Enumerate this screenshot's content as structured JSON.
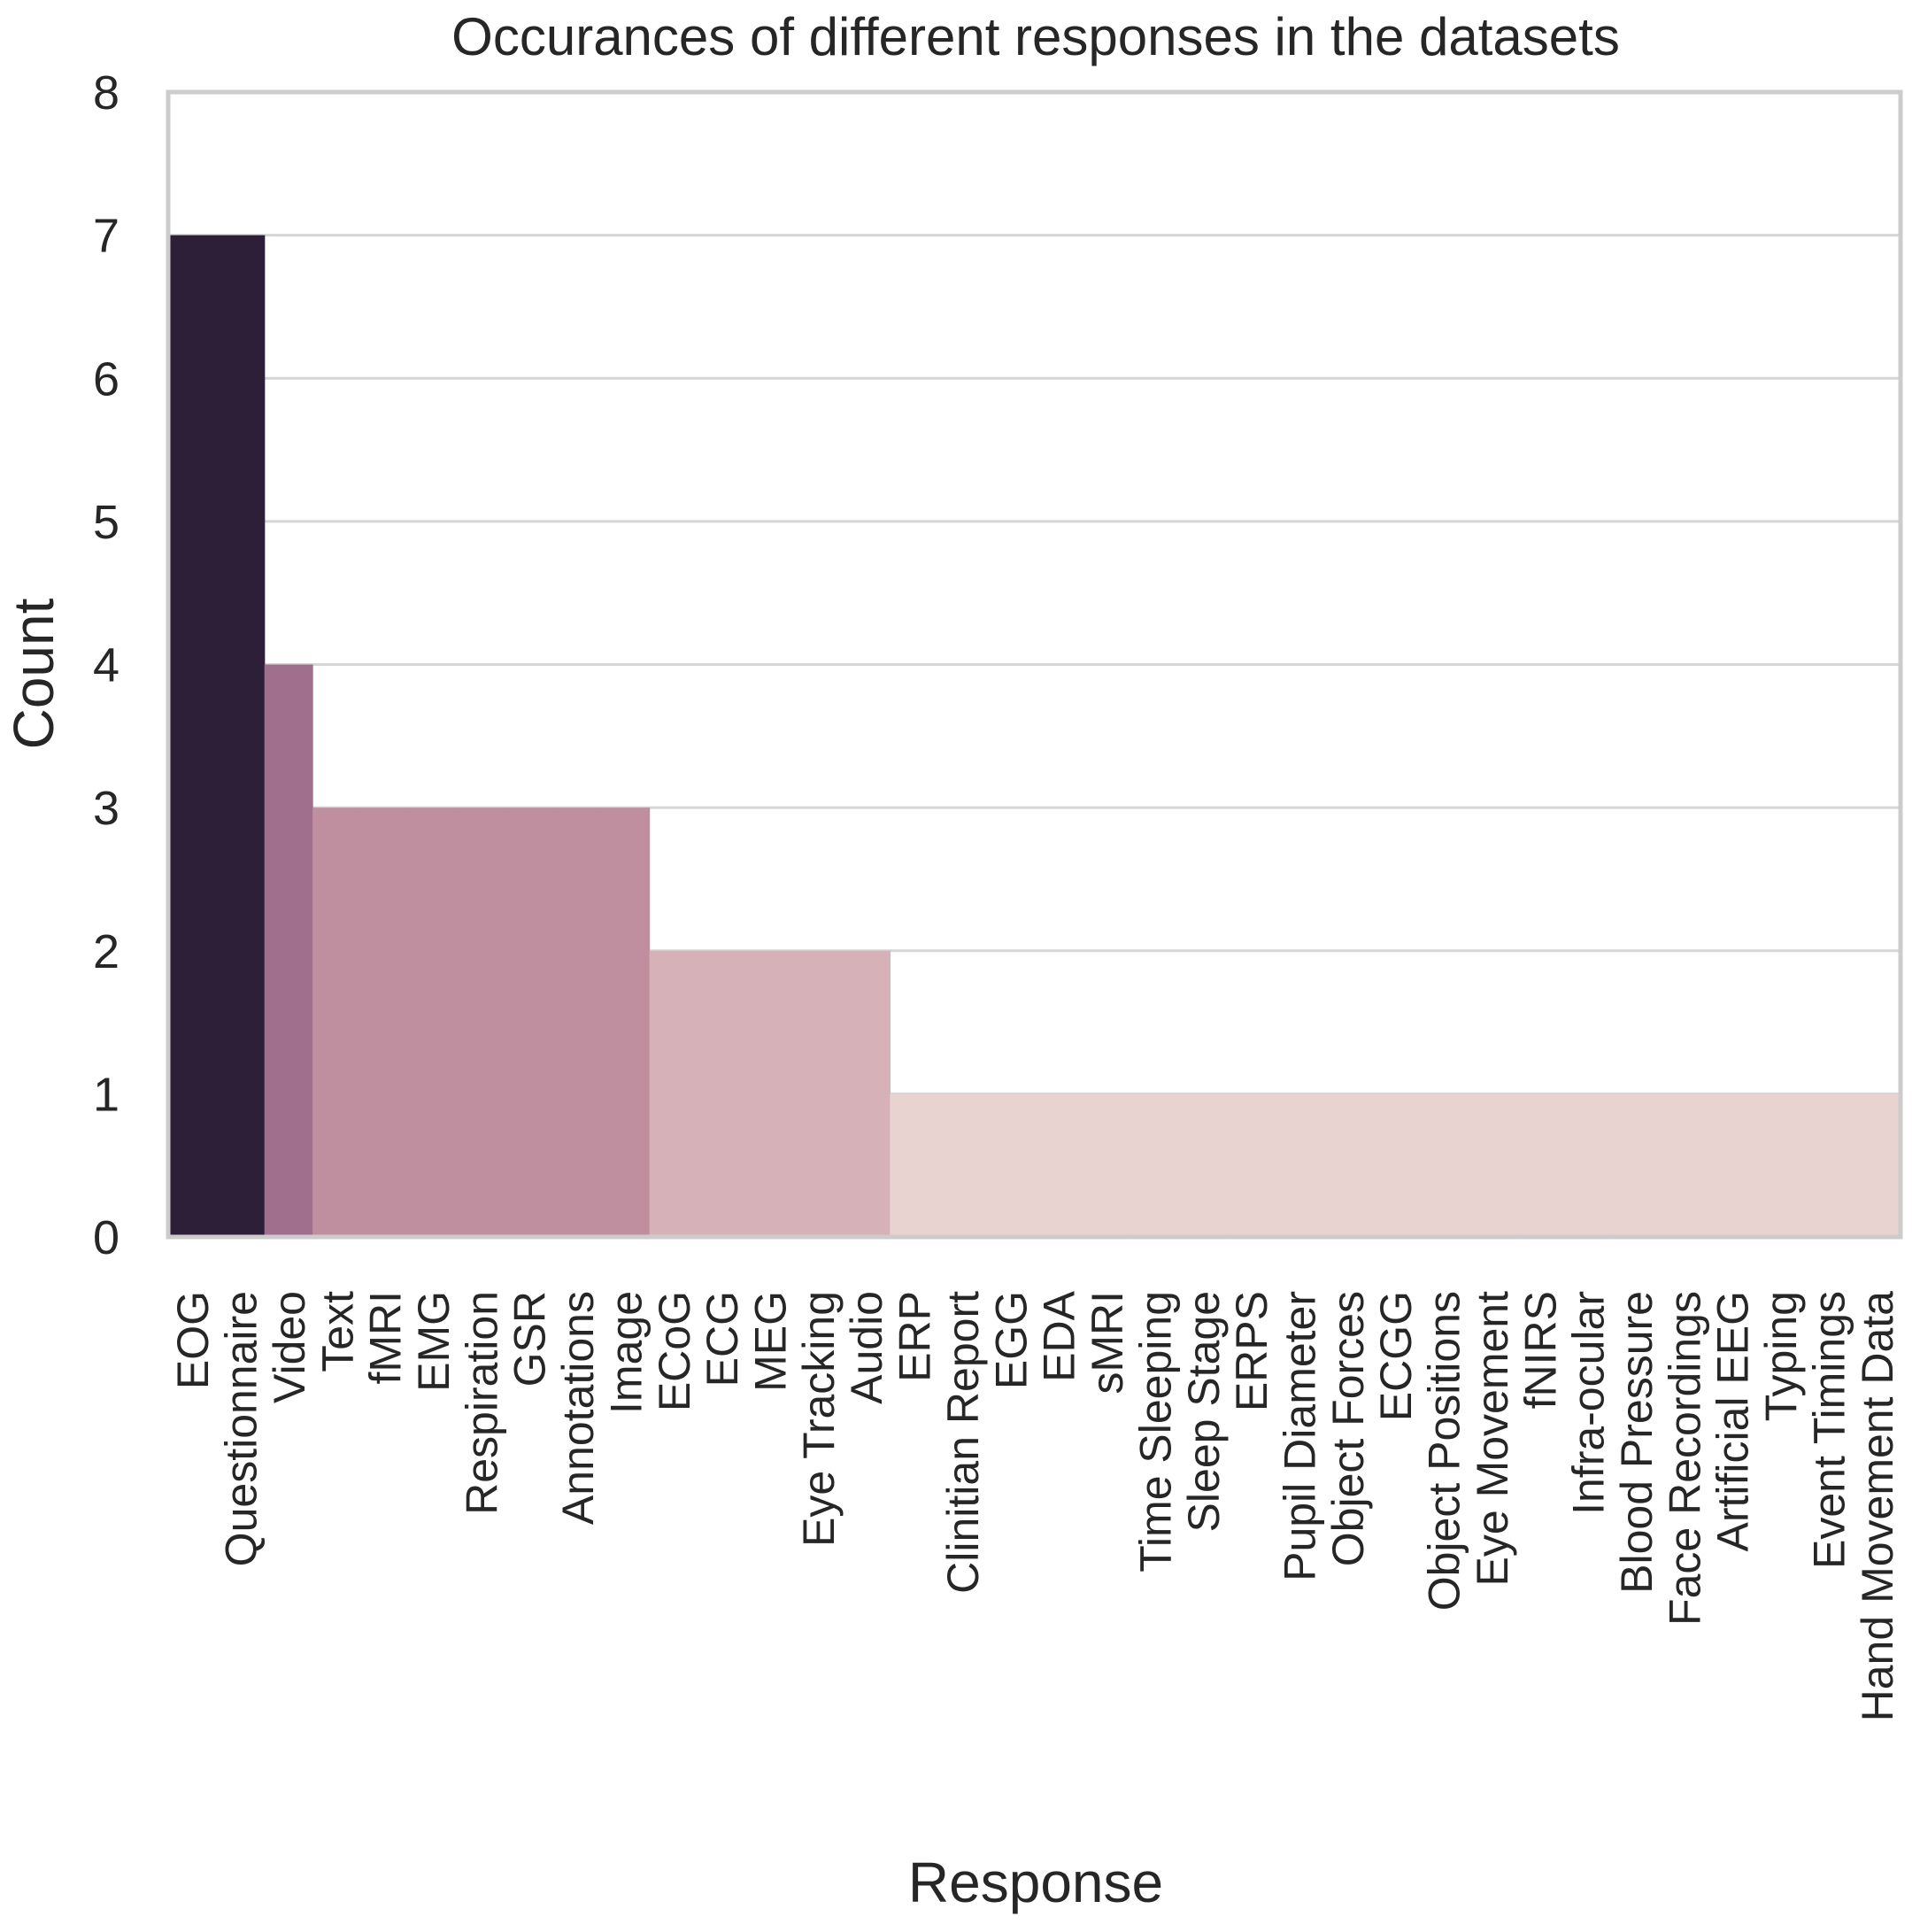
{
  "chart_data": {
    "type": "bar",
    "title": "Occurances of different responses in the datasets",
    "xlabel": "Response",
    "ylabel": "Count",
    "ylim": [
      0,
      8
    ],
    "yticks": [
      0,
      1,
      2,
      3,
      4,
      5,
      6,
      7,
      8
    ],
    "grid": true,
    "categories": [
      "EOG",
      "Questionnaire",
      "Video",
      "Text",
      "fMRI",
      "EMG",
      "Respiration",
      "GSR",
      "Annotations",
      "Image",
      "ECoG",
      "ECG",
      "MEG",
      "Eye Tracking",
      "Audio",
      "ERP",
      "Clinitian Report",
      "EGG",
      "EDA",
      "sMRI",
      "Time Sleeping",
      "Sleep Stage",
      "ERPS",
      "Pupil Diameter",
      "Object Forces",
      "ECGG",
      "Object Positions",
      "Eye Movement",
      "fNIRS",
      "Infra-ocular",
      "Blood Pressure",
      "Face Recordings",
      "Artificial EEG",
      "Typing",
      "Event Timings",
      "Hand Movement Data"
    ],
    "values": [
      7,
      7,
      4,
      3,
      3,
      3,
      3,
      3,
      3,
      3,
      2,
      2,
      2,
      2,
      2,
      1,
      1,
      1,
      1,
      1,
      1,
      1,
      1,
      1,
      1,
      1,
      1,
      1,
      1,
      1,
      1,
      1,
      1,
      1,
      1,
      1
    ],
    "colors": {
      "7": "#2e1f38",
      "4": "#a06f8e",
      "3": "#bf8e9f",
      "2": "#d6b2b8",
      "1": "#e8d3d0"
    }
  }
}
